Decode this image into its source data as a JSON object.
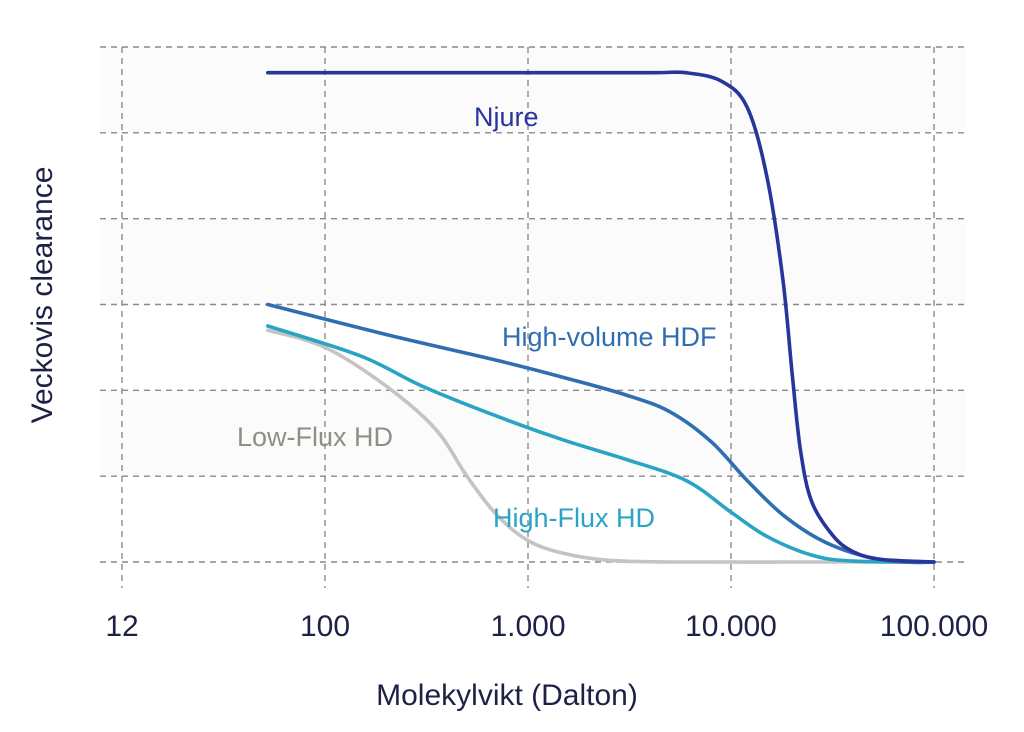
{
  "chart_data": {
    "type": "line",
    "x_scale": "log",
    "xlabel": "Molekylvikt (Dalton)",
    "ylabel": "Veckovis clearance",
    "xlim": [
      12,
      100000
    ],
    "ylim": [
      0,
      6
    ],
    "grid": true,
    "x_ticks": [
      {
        "value": 12,
        "label": "12"
      },
      {
        "value": 100,
        "label": "100"
      },
      {
        "value": 1000,
        "label": "1.000"
      },
      {
        "value": 10000,
        "label": "10.000"
      },
      {
        "value": 100000,
        "label": "100.000"
      }
    ],
    "series": [
      {
        "name": "Njure",
        "color": "#28359b",
        "points": [
          [
            55,
            5.7
          ],
          [
            300,
            5.7
          ],
          [
            1000,
            5.7
          ],
          [
            4000,
            5.7
          ],
          [
            6000,
            5.7
          ],
          [
            9000,
            5.6
          ],
          [
            12000,
            5.3
          ],
          [
            15000,
            4.5
          ],
          [
            18000,
            3.3
          ],
          [
            20000,
            2.2
          ],
          [
            22000,
            1.3
          ],
          [
            25000,
            0.7
          ],
          [
            32000,
            0.3
          ],
          [
            40000,
            0.12
          ],
          [
            55000,
            0.03
          ],
          [
            100000,
            0.0
          ]
        ]
      },
      {
        "name": "High-volume HDF",
        "color": "#2f6eb0",
        "points": [
          [
            55,
            3.0
          ],
          [
            200,
            2.65
          ],
          [
            700,
            2.35
          ],
          [
            1500,
            2.15
          ],
          [
            3000,
            1.95
          ],
          [
            5000,
            1.75
          ],
          [
            8000,
            1.4
          ],
          [
            12000,
            0.95
          ],
          [
            18000,
            0.55
          ],
          [
            28000,
            0.25
          ],
          [
            45000,
            0.07
          ],
          [
            70000,
            0.0
          ],
          [
            100000,
            0.0
          ]
        ]
      },
      {
        "name": "High-Flux HD",
        "color": "#2aa4c4",
        "points": [
          [
            55,
            2.75
          ],
          [
            150,
            2.4
          ],
          [
            300,
            2.05
          ],
          [
            700,
            1.7
          ],
          [
            1500,
            1.42
          ],
          [
            3000,
            1.2
          ],
          [
            6000,
            0.95
          ],
          [
            10000,
            0.58
          ],
          [
            15000,
            0.3
          ],
          [
            25000,
            0.08
          ],
          [
            40000,
            0.01
          ],
          [
            100000,
            0.0
          ]
        ]
      },
      {
        "name": "Low-Flux HD",
        "color": "#c4c4c4",
        "points": [
          [
            55,
            2.7
          ],
          [
            100,
            2.5
          ],
          [
            200,
            2.05
          ],
          [
            350,
            1.55
          ],
          [
            500,
            1.0
          ],
          [
            700,
            0.55
          ],
          [
            1000,
            0.25
          ],
          [
            1500,
            0.1
          ],
          [
            2500,
            0.02
          ],
          [
            5000,
            0.0
          ],
          [
            20000,
            0.0
          ],
          [
            100000,
            0.0
          ]
        ]
      }
    ],
    "annotations": [
      {
        "text": "Njure",
        "series": "Njure",
        "x": 1000,
        "y": 5.25
      },
      {
        "text": "High-volume HDF",
        "series": "High-volume HDF",
        "x": 5000,
        "y": 2.55
      },
      {
        "text": "Low-Flux HD",
        "series": "Low-Flux HD",
        "x": 150,
        "y": 1.45
      },
      {
        "text": "High-Flux HD",
        "series": "High-Flux HD",
        "x": 1700,
        "y": 0.52
      }
    ]
  }
}
